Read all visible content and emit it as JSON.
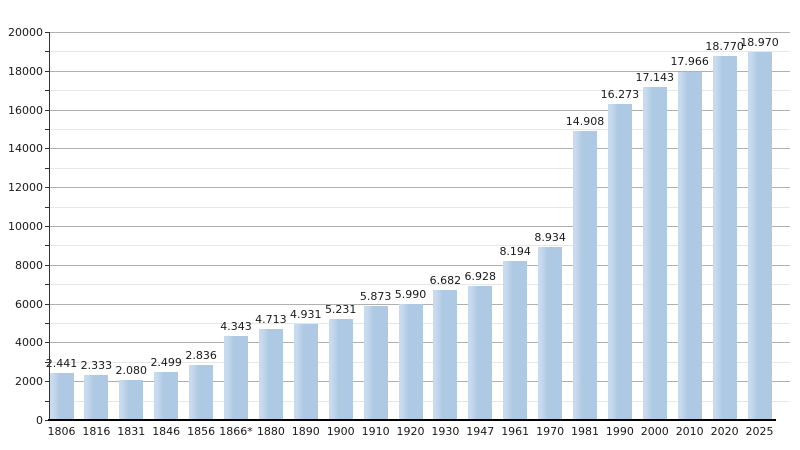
{
  "chart_data": {
    "type": "bar",
    "title": "",
    "xlabel": "",
    "ylabel": "",
    "categories": [
      "1806",
      "1816",
      "1831",
      "1846",
      "1856",
      "1866*",
      "1880",
      "1890",
      "1900",
      "1910",
      "1920",
      "1930",
      "1947",
      "1961",
      "1970",
      "1981",
      "1990",
      "2000",
      "2010",
      "2020",
      "2025"
    ],
    "values": [
      2441,
      2333,
      2080,
      2499,
      2836,
      4343,
      4713,
      4931,
      5231,
      5873,
      5990,
      6682,
      6928,
      8194,
      8934,
      14908,
      16273,
      17143,
      17966,
      18770,
      18970
    ],
    "value_labels": [
      "2.441",
      "2.333",
      "2.080",
      "2.499",
      "2.836",
      "4.343",
      "4.713",
      "4.931",
      "5.231",
      "5.873",
      "5.990",
      "6.682",
      "6.928",
      "8.194",
      "8.934",
      "14.908",
      "16.273",
      "17.143",
      "17.966",
      "18.770",
      "18.970"
    ],
    "ylim": [
      0,
      20000
    ],
    "y_major_step": 2000,
    "y_minor_step": 1000,
    "y_tick_labels": [
      "0",
      "2000",
      "4000",
      "6000",
      "8000",
      "10000",
      "12000",
      "14000",
      "16000",
      "18000",
      "20000"
    ],
    "grid": "horizontal",
    "legend_position": "none",
    "colors": {
      "bar": "#aec9e3",
      "bar_highlight": "#c8daee",
      "grid_major": "#b0b0b0",
      "grid_minor": "#e7e7e7",
      "axis": "#000000",
      "text": "#1a1a1a"
    }
  }
}
